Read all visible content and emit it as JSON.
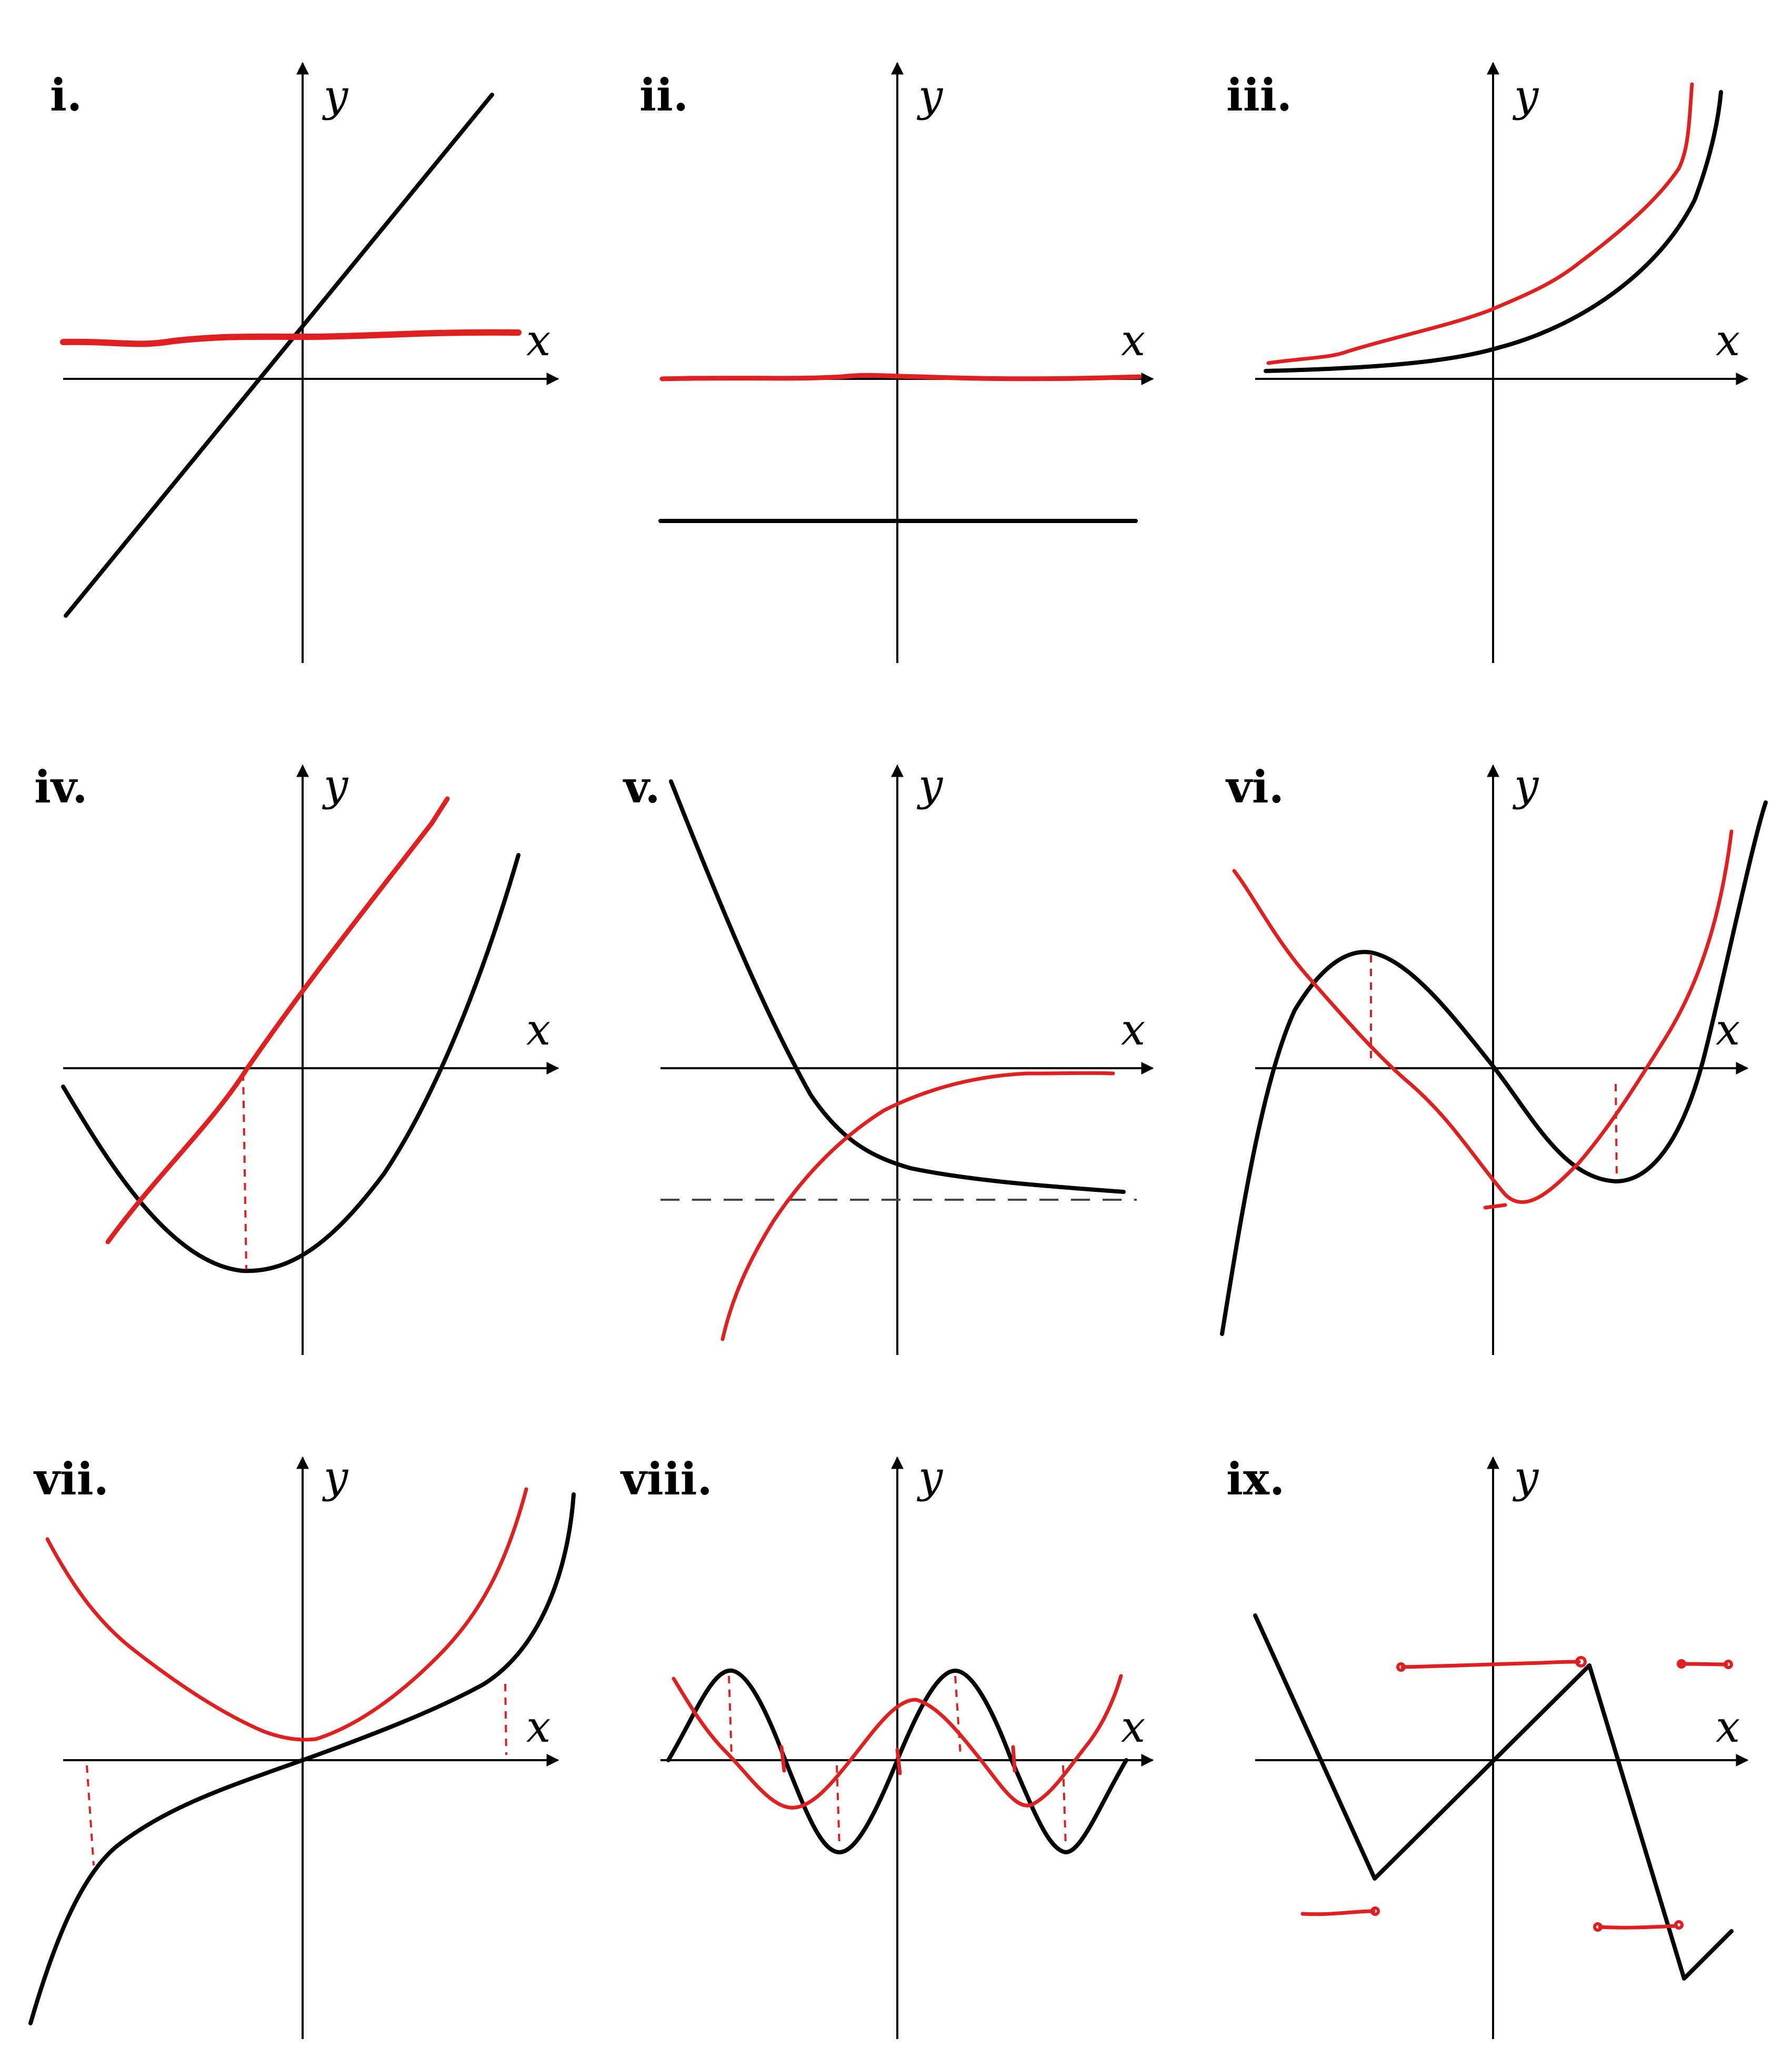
{
  "panels": [
    {
      "id": "i",
      "label": "i.",
      "x_label": "x",
      "y_label": "y"
    },
    {
      "id": "ii",
      "label": "ii.",
      "x_label": "x",
      "y_label": "y"
    },
    {
      "id": "iii",
      "label": "iii.",
      "x_label": "x",
      "y_label": "y"
    },
    {
      "id": "iv",
      "label": "iv.",
      "x_label": "x",
      "y_label": "y"
    },
    {
      "id": "v",
      "label": "v.",
      "x_label": "x",
      "y_label": "y"
    },
    {
      "id": "vi",
      "label": "vi.",
      "x_label": "x",
      "y_label": "y"
    },
    {
      "id": "vii",
      "label": "vii.",
      "x_label": "x",
      "y_label": "y"
    },
    {
      "id": "viii",
      "label": "viii.",
      "x_label": "x",
      "y_label": "y"
    },
    {
      "id": "ix",
      "label": "ix.",
      "x_label": "x",
      "y_label": "y"
    }
  ],
  "colors": {
    "original_curve": "#000000",
    "derivative_sketch": "#e02020"
  }
}
